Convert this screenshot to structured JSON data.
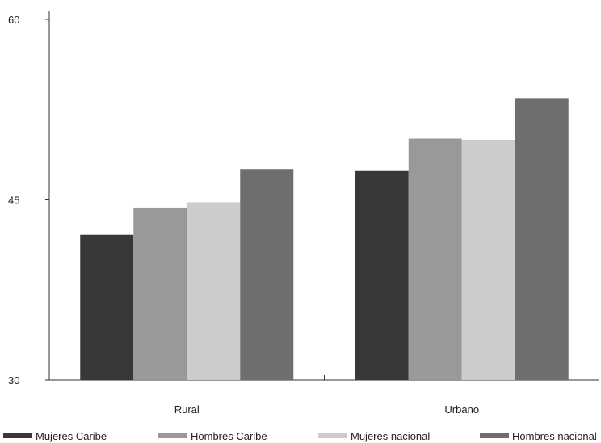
{
  "chart_data": {
    "type": "bar",
    "categories": [
      "Rural",
      "Urbano"
    ],
    "series": [
      {
        "name": "Mujeres Caribe",
        "values": [
          42.1,
          47.4
        ],
        "color": "#383838"
      },
      {
        "name": "Hombres Caribe",
        "values": [
          44.3,
          50.1
        ],
        "color": "#999999"
      },
      {
        "name": "Mujeres nacional",
        "values": [
          44.8,
          50.0
        ],
        "color": "#cccccc"
      },
      {
        "name": "Hombres nacional",
        "values": [
          47.5,
          53.4
        ],
        "color": "#6e6e6e"
      }
    ],
    "yticks": [
      30,
      45,
      60
    ],
    "ylim": [
      30,
      60
    ],
    "title": "",
    "xlabel": "",
    "ylabel": "",
    "legend_position": "bottom",
    "grid": false
  }
}
